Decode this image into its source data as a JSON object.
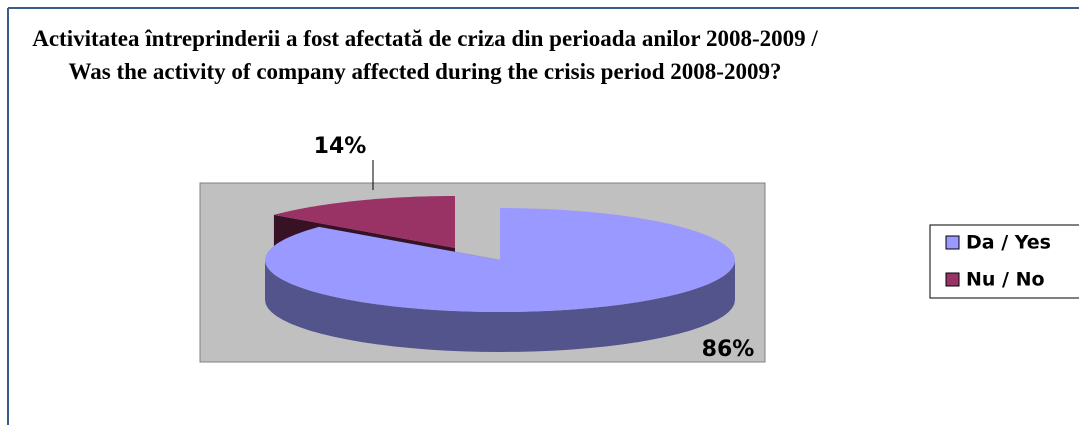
{
  "chart_data": {
    "type": "pie",
    "title": "Activitatea întreprinderii a fost afectată de criza din perioada anilor 2008-2009 / Was the activity of company affected during the crisis period 2008-2009?",
    "categories": [
      "Da / Yes",
      "Nu / No"
    ],
    "values": [
      86,
      14
    ],
    "value_labels": [
      "86%",
      "14%"
    ],
    "colors": [
      "#9999ff",
      "#993366"
    ],
    "legend": "right"
  }
}
